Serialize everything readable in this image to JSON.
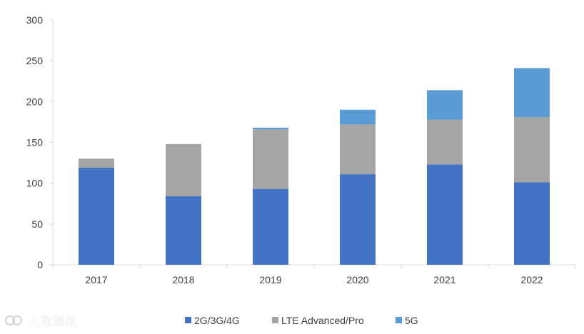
{
  "chart_data": {
    "type": "bar",
    "stacked": true,
    "categories": [
      "2017",
      "2018",
      "2019",
      "2020",
      "2021",
      "2022"
    ],
    "series": [
      {
        "name": "2G/3G/4G",
        "color": "#4472C4",
        "values": [
          119,
          84,
          93,
          111,
          123,
          101
        ]
      },
      {
        "name": "LTE Advanced/Pro",
        "color": "#A5A5A5",
        "values": [
          11,
          64,
          73,
          61,
          55,
          80
        ]
      },
      {
        "name": "5G",
        "color": "#5B9BD5",
        "values": [
          0,
          0,
          2,
          18,
          36,
          60
        ]
      }
    ],
    "ylim": [
      0,
      300
    ],
    "yticks": [
      0,
      50,
      100,
      150,
      200,
      250,
      300
    ],
    "ytick_labels": [
      "0",
      "50",
      "100",
      "150",
      "200",
      "250",
      "300"
    ],
    "grid": false,
    "legend_position": "bottom",
    "title": "",
    "xlabel": "",
    "ylabel": ""
  },
  "watermark": {
    "text": "大数跨境",
    "icon": "watermark-logo-icon"
  }
}
